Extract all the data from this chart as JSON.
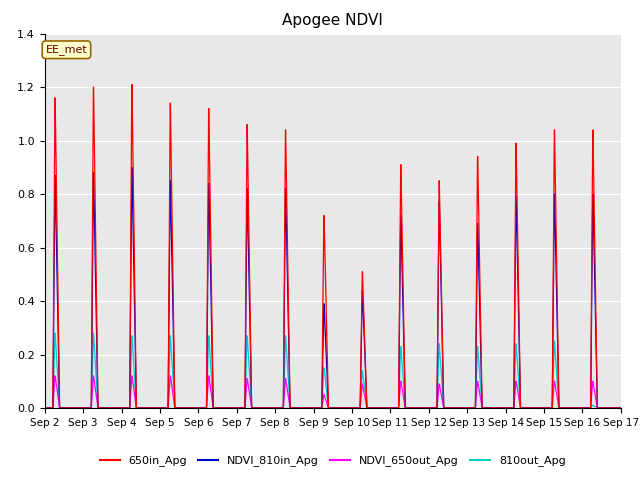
{
  "title": "Apogee NDVI",
  "xlim": [
    0,
    15
  ],
  "ylim": [
    0,
    1.4
  ],
  "yticks": [
    0.0,
    0.2,
    0.4,
    0.6,
    0.8,
    1.0,
    1.2,
    1.4
  ],
  "xtick_labels": [
    "Sep 2",
    "Sep 3",
    "Sep 4",
    "Sep 5",
    "Sep 6",
    "Sep 7",
    "Sep 8",
    "Sep 9",
    "Sep 10",
    "Sep 11",
    "Sep 12",
    "Sep 13",
    "Sep 14",
    "Sep 15",
    "Sep 16",
    "Sep 17"
  ],
  "series": {
    "red": {
      "label": "650in_Apg",
      "color": "#ff0000",
      "peaks": [
        1.16,
        1.2,
        1.21,
        1.14,
        1.12,
        1.06,
        1.04,
        0.72,
        0.51,
        0.91,
        0.85,
        0.94,
        0.99,
        1.04,
        1.04
      ]
    },
    "blue": {
      "label": "NDVI_810in_Apg",
      "color": "#0000cc",
      "peaks": [
        0.87,
        0.88,
        0.9,
        0.85,
        0.84,
        0.82,
        0.82,
        0.39,
        0.44,
        0.72,
        0.77,
        0.69,
        0.79,
        0.8,
        0.8
      ]
    },
    "magenta": {
      "label": "NDVI_650out_Apg",
      "color": "#ff00ff",
      "peaks": [
        0.12,
        0.12,
        0.12,
        0.12,
        0.12,
        0.11,
        0.11,
        0.05,
        0.09,
        0.1,
        0.09,
        0.1,
        0.1,
        0.1,
        0.1
      ]
    },
    "cyan": {
      "label": "810out_Apg",
      "color": "#00cccc",
      "peaks": [
        0.28,
        0.28,
        0.27,
        0.27,
        0.27,
        0.27,
        0.27,
        0.15,
        0.14,
        0.23,
        0.24,
        0.23,
        0.24,
        0.25,
        0.01
      ]
    }
  },
  "annotation": "EE_met",
  "facecolor": "#e8e8e8",
  "title_fontsize": 11,
  "tick_fontsize": 7.5,
  "linewidth": 0.9
}
